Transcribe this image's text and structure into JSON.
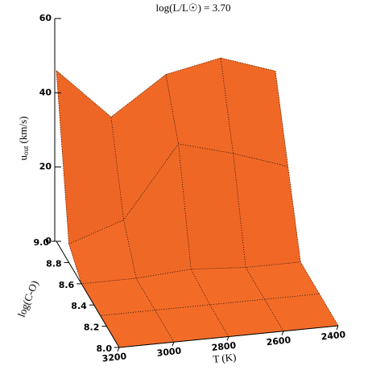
{
  "chart_data": {
    "type": "surface",
    "title": "log(L/L☉) = 3.70",
    "x_label": "T (K)",
    "y_label": "log(C-O)",
    "z_label": "u",
    "z_label_sub": "out",
    "z_label_unit": "(km/s)",
    "x": [
      3200,
      3000,
      2800,
      2600,
      2400
    ],
    "y": [
      {
        "value": 8.0,
        "label": "8.0"
      },
      8.3,
      8.6,
      8.8,
      {
        "value": 9.0,
        "label": "9.0"
      }
    ],
    "z": [
      [
        0,
        0,
        0,
        0,
        0
      ],
      [
        0,
        0,
        0,
        0,
        0
      ],
      [
        0,
        0,
        1,
        0,
        0
      ],
      [
        5,
        10,
        29,
        25,
        20
      ],
      [
        46,
        32,
        42,
        45,
        40
      ]
    ],
    "color": "#f26c28",
    "xlim": [
      3200,
      2400
    ],
    "xticks": [
      3200,
      3000,
      2800,
      2600,
      2400
    ],
    "ylim": [
      {
        "value": 8.0,
        "label": "8.0"
      },
      {
        "value": 9.0,
        "label": "9.0"
      }
    ],
    "yticks": [
      {
        "value": 8.0,
        "label": "8.0"
      },
      {
        "value": 8.2,
        "label": "8.2"
      },
      {
        "value": 8.4,
        "label": "8.4"
      },
      {
        "value": 8.6,
        "label": "8.6"
      },
      {
        "value": 8.8,
        "label": "8.8"
      },
      {
        "value": 9.0,
        "label": "9.0"
      }
    ],
    "zlim": [
      0,
      60
    ],
    "zticks": [
      0,
      20,
      40,
      60
    ]
  }
}
